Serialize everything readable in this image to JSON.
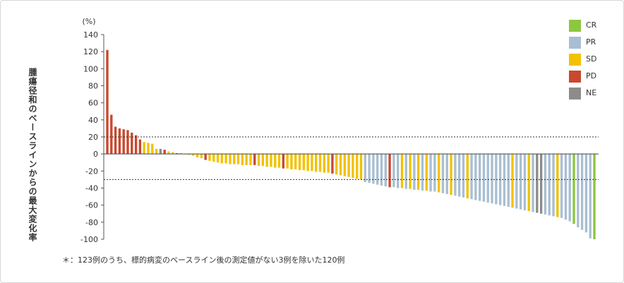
{
  "chart_data": {
    "type": "bar",
    "title": "",
    "xlabel": "",
    "ylabel": "腫瘍径和のベースラインからの最大変化率",
    "yunit": "(%)",
    "ylim": [
      -100,
      140
    ],
    "yticks": [
      140,
      120,
      100,
      80,
      60,
      40,
      20,
      0,
      -20,
      -40,
      -60,
      -80,
      -100
    ],
    "reference_lines": [
      20,
      -30
    ],
    "legend_position": "top-right",
    "legend": [
      {
        "code": "CR",
        "color": "#8dc63f"
      },
      {
        "code": "PR",
        "color": "#a9bfd1"
      },
      {
        "code": "SD",
        "color": "#f2c200"
      },
      {
        "code": "PD",
        "color": "#c9482e"
      },
      {
        "code": "NE",
        "color": "#8c8c8c"
      }
    ],
    "bars": [
      {
        "v": 122,
        "c": "PD"
      },
      {
        "v": 46,
        "c": "PD"
      },
      {
        "v": 32,
        "c": "PD"
      },
      {
        "v": 30,
        "c": "PD"
      },
      {
        "v": 29,
        "c": "PD"
      },
      {
        "v": 28,
        "c": "PD"
      },
      {
        "v": 25,
        "c": "PD"
      },
      {
        "v": 22,
        "c": "PD"
      },
      {
        "v": 17,
        "c": "PD"
      },
      {
        "v": 14,
        "c": "SD"
      },
      {
        "v": 13,
        "c": "SD"
      },
      {
        "v": 12,
        "c": "SD"
      },
      {
        "v": 6,
        "c": "SD"
      },
      {
        "v": 6,
        "c": "NE"
      },
      {
        "v": 5,
        "c": "PD"
      },
      {
        "v": 3,
        "c": "SD"
      },
      {
        "v": 2,
        "c": "SD"
      },
      {
        "v": 1,
        "c": "PD"
      },
      {
        "v": 1,
        "c": "SD"
      },
      {
        "v": 0.5,
        "c": "SD"
      },
      {
        "v": -1,
        "c": "SD"
      },
      {
        "v": -2,
        "c": "SD"
      },
      {
        "v": -4,
        "c": "SD"
      },
      {
        "v": -5,
        "c": "SD"
      },
      {
        "v": -7,
        "c": "PD"
      },
      {
        "v": -8,
        "c": "SD"
      },
      {
        "v": -9,
        "c": "SD"
      },
      {
        "v": -10,
        "c": "SD"
      },
      {
        "v": -11,
        "c": "SD"
      },
      {
        "v": -11,
        "c": "SD"
      },
      {
        "v": -12,
        "c": "SD"
      },
      {
        "v": -12,
        "c": "SD"
      },
      {
        "v": -12,
        "c": "SD"
      },
      {
        "v": -13,
        "c": "SD"
      },
      {
        "v": -13,
        "c": "SD"
      },
      {
        "v": -13,
        "c": "SD"
      },
      {
        "v": -13,
        "c": "PD"
      },
      {
        "v": -14,
        "c": "SD"
      },
      {
        "v": -14,
        "c": "SD"
      },
      {
        "v": -15,
        "c": "SD"
      },
      {
        "v": -15,
        "c": "SD"
      },
      {
        "v": -16,
        "c": "SD"
      },
      {
        "v": -16,
        "c": "SD"
      },
      {
        "v": -17,
        "c": "PD"
      },
      {
        "v": -17,
        "c": "SD"
      },
      {
        "v": -18,
        "c": "SD"
      },
      {
        "v": -18,
        "c": "SD"
      },
      {
        "v": -19,
        "c": "SD"
      },
      {
        "v": -19,
        "c": "SD"
      },
      {
        "v": -20,
        "c": "SD"
      },
      {
        "v": -20,
        "c": "SD"
      },
      {
        "v": -21,
        "c": "SD"
      },
      {
        "v": -21,
        "c": "SD"
      },
      {
        "v": -22,
        "c": "SD"
      },
      {
        "v": -22,
        "c": "SD"
      },
      {
        "v": -23,
        "c": "PD"
      },
      {
        "v": -24,
        "c": "SD"
      },
      {
        "v": -25,
        "c": "SD"
      },
      {
        "v": -26,
        "c": "SD"
      },
      {
        "v": -27,
        "c": "SD"
      },
      {
        "v": -28,
        "c": "SD"
      },
      {
        "v": -29,
        "c": "SD"
      },
      {
        "v": -30,
        "c": "SD"
      },
      {
        "v": -33,
        "c": "PR"
      },
      {
        "v": -34,
        "c": "PR"
      },
      {
        "v": -35,
        "c": "PR"
      },
      {
        "v": -36,
        "c": "PR"
      },
      {
        "v": -37,
        "c": "PR"
      },
      {
        "v": -38,
        "c": "PR"
      },
      {
        "v": -39,
        "c": "PD"
      },
      {
        "v": -39,
        "c": "PR"
      },
      {
        "v": -40,
        "c": "PR"
      },
      {
        "v": -40,
        "c": "SD"
      },
      {
        "v": -41,
        "c": "PR"
      },
      {
        "v": -41,
        "c": "SD"
      },
      {
        "v": -42,
        "c": "PR"
      },
      {
        "v": -42,
        "c": "SD"
      },
      {
        "v": -43,
        "c": "PR"
      },
      {
        "v": -43,
        "c": "SD"
      },
      {
        "v": -44,
        "c": "PR"
      },
      {
        "v": -44,
        "c": "PR"
      },
      {
        "v": -45,
        "c": "SD"
      },
      {
        "v": -46,
        "c": "PR"
      },
      {
        "v": -47,
        "c": "PR"
      },
      {
        "v": -48,
        "c": "SD"
      },
      {
        "v": -49,
        "c": "PR"
      },
      {
        "v": -50,
        "c": "PR"
      },
      {
        "v": -51,
        "c": "PR"
      },
      {
        "v": -52,
        "c": "SD"
      },
      {
        "v": -53,
        "c": "PR"
      },
      {
        "v": -54,
        "c": "PR"
      },
      {
        "v": -55,
        "c": "PR"
      },
      {
        "v": -56,
        "c": "PR"
      },
      {
        "v": -57,
        "c": "PR"
      },
      {
        "v": -58,
        "c": "PR"
      },
      {
        "v": -59,
        "c": "PR"
      },
      {
        "v": -60,
        "c": "PR"
      },
      {
        "v": -61,
        "c": "PR"
      },
      {
        "v": -62,
        "c": "PR"
      },
      {
        "v": -63,
        "c": "SD"
      },
      {
        "v": -64,
        "c": "PR"
      },
      {
        "v": -65,
        "c": "PR"
      },
      {
        "v": -66,
        "c": "PR"
      },
      {
        "v": -67,
        "c": "SD"
      },
      {
        "v": -68,
        "c": "PR"
      },
      {
        "v": -69,
        "c": "NE"
      },
      {
        "v": -70,
        "c": "NE"
      },
      {
        "v": -71,
        "c": "PR"
      },
      {
        "v": -72,
        "c": "PR"
      },
      {
        "v": -73,
        "c": "PR"
      },
      {
        "v": -74,
        "c": "SD"
      },
      {
        "v": -75,
        "c": "PR"
      },
      {
        "v": -77,
        "c": "PR"
      },
      {
        "v": -79,
        "c": "PR"
      },
      {
        "v": -82,
        "c": "CR"
      },
      {
        "v": -86,
        "c": "PR"
      },
      {
        "v": -89,
        "c": "PR"
      },
      {
        "v": -92,
        "c": "PR"
      },
      {
        "v": -99,
        "c": "PR"
      },
      {
        "v": -100,
        "c": "CR"
      }
    ]
  },
  "footnote": "＊：123例のうち、標的病変のベースライン後の測定値がない3例を除いた120例"
}
